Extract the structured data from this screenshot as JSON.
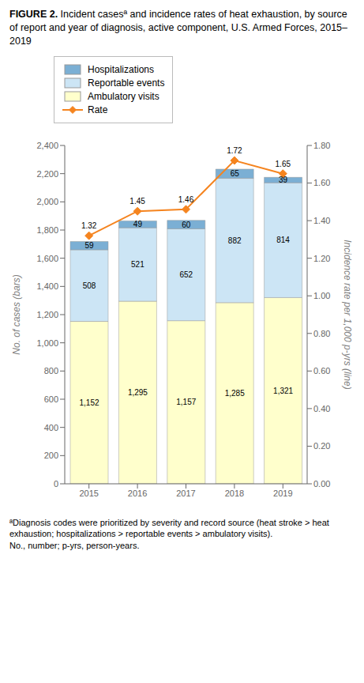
{
  "chart_data": {
    "type": "bar",
    "title": "FIGURE 2. Incident casesª and incidence rates of heat exhaustion, by source of report and year of diagnosis, active component, U.S. Armed Forces, 2015–2019",
    "annotations": [
      "ªDiagnosis codes were prioritized by severity and record source (heat stroke > heat exhaustion; hospitalizations > reportable events > ambulatory visits).",
      "No., number; p-yrs, person-years."
    ],
    "categories": [
      "2015",
      "2016",
      "2017",
      "2018",
      "2019"
    ],
    "stacked": true,
    "data_labels": true,
    "grid": false,
    "legend": "top",
    "ylabel": "No. of cases (bars)",
    "y2label": "Incidence rate per 1,000 p-yrs (line)",
    "ylim": [
      0,
      2400
    ],
    "yticks": [
      0,
      200,
      400,
      600,
      800,
      {
        "value": 1000,
        "label": "1,000"
      },
      {
        "value": 1200,
        "label": "1,200"
      },
      {
        "value": 1400,
        "label": "1,400"
      },
      {
        "value": 1600,
        "label": "1,600"
      },
      {
        "value": 1800,
        "label": "1,800"
      },
      {
        "value": 2000,
        "label": "2,000"
      },
      {
        "value": 2200,
        "label": "2,200"
      },
      {
        "value": 2400,
        "label": "2,400"
      }
    ],
    "y2lim": [
      0,
      1.8
    ],
    "y2ticks": [
      {
        "value": 0,
        "label": "0.00"
      },
      {
        "value": 0.2,
        "label": "0.20"
      },
      {
        "value": 0.4,
        "label": "0.40"
      },
      {
        "value": 0.6,
        "label": "0.60"
      },
      {
        "value": 0.8,
        "label": "0.80"
      },
      {
        "value": 1.0,
        "label": "1.00"
      },
      {
        "value": 1.2,
        "label": "1.20"
      },
      {
        "value": 1.4,
        "label": "1.40"
      },
      {
        "value": 1.6,
        "label": "1.60"
      },
      {
        "value": 1.8,
        "label": "1.80"
      }
    ],
    "series": [
      {
        "name": "Ambulatory visits",
        "type": "bar",
        "color": "#ffffcc",
        "values": [
          1152,
          1295,
          1157,
          1285,
          1321
        ],
        "value_labels": [
          "1,152",
          "1,295",
          "1,157",
          "1,285",
          "1,321"
        ]
      },
      {
        "name": "Reportable events",
        "type": "bar",
        "color": "#cce5f5",
        "values": [
          508,
          521,
          652,
          882,
          814
        ]
      },
      {
        "name": "Hospitalizations",
        "type": "bar",
        "color": "#7bafd4",
        "values": [
          59,
          49,
          60,
          65,
          39
        ]
      },
      {
        "name": "Rate",
        "type": "line",
        "axis": "y2",
        "color": "#f5841f",
        "marker": "diamond",
        "line_style": "solid",
        "values": [
          1.32,
          1.45,
          1.46,
          1.72,
          1.65
        ]
      }
    ]
  }
}
